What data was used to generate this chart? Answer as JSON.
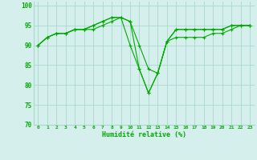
{
  "xlabel": "Humidité relative (%)",
  "background_color": "#d5f0ec",
  "grid_color": "#a8d8cc",
  "line_color": "#00aa00",
  "x_ticks": [
    0,
    1,
    2,
    3,
    4,
    5,
    6,
    7,
    8,
    9,
    10,
    11,
    12,
    13,
    14,
    15,
    16,
    17,
    18,
    19,
    20,
    21,
    22,
    23
  ],
  "ylim": [
    70,
    101
  ],
  "y_ticks": [
    70,
    75,
    80,
    85,
    90,
    95,
    100
  ],
  "series1": [
    90,
    92,
    93,
    93,
    94,
    94,
    95,
    96,
    97,
    97,
    96,
    90,
    84,
    83,
    91,
    94,
    94,
    94,
    94,
    94,
    94,
    95,
    95,
    95
  ],
  "series2": [
    90,
    92,
    93,
    93,
    94,
    94,
    94,
    95,
    96,
    97,
    90,
    84,
    78,
    83,
    91,
    92,
    92,
    92,
    92,
    93,
    93,
    94,
    95,
    95
  ],
  "series3": [
    90,
    92,
    93,
    93,
    94,
    94,
    95,
    96,
    97,
    97,
    96,
    84,
    78,
    83,
    91,
    94,
    94,
    94,
    94,
    94,
    94,
    95,
    95,
    95
  ]
}
